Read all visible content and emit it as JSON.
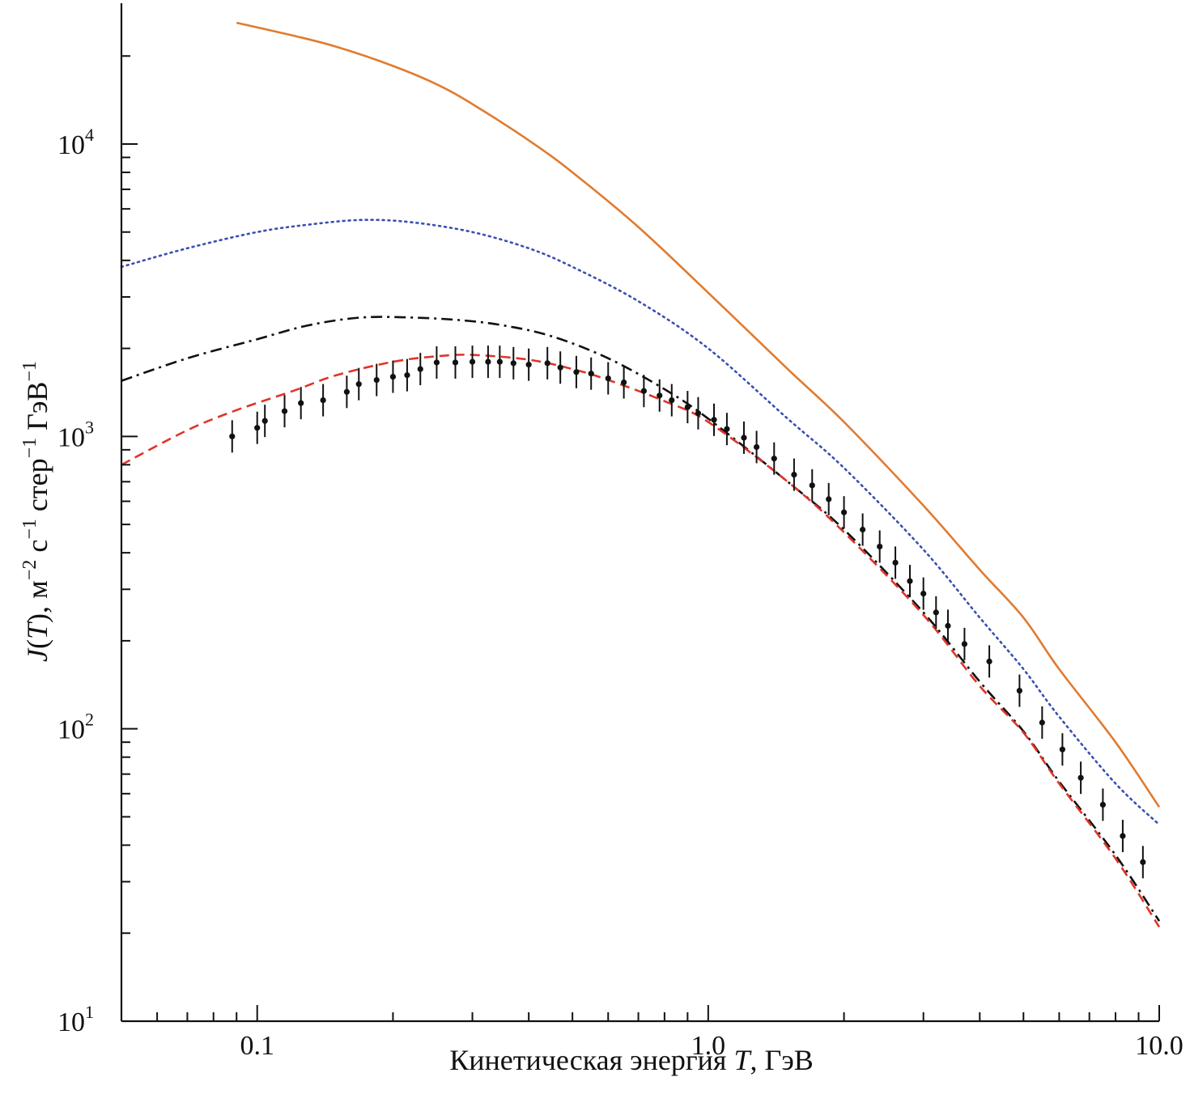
{
  "chart_data": {
    "type": "line",
    "xscale": "log",
    "yscale": "log",
    "xlim": [
      0.05,
      10.0
    ],
    "ylim": [
      10,
      30000
    ],
    "xlabel": {
      "prefix": "Кинетическая энергия ",
      "variable": "T",
      "suffix": ", ГэВ"
    },
    "ylabel": {
      "j": "J",
      "t": "T",
      "unit1": "), м",
      "exp1": "−2",
      "unit2": " с",
      "exp2": "−1",
      "unit3": " стер",
      "exp3": "−1",
      "unit4": " ГэВ",
      "exp4": "−1"
    },
    "x_ticks": [
      {
        "value": 0.1,
        "label": "0.1"
      },
      {
        "value": 1.0,
        "label": "1.0"
      },
      {
        "value": 10.0,
        "label": "10.0"
      }
    ],
    "y_ticks": [
      {
        "value": 10,
        "base": "10",
        "exp": "1"
      },
      {
        "value": 100,
        "base": "10",
        "exp": "2"
      },
      {
        "value": 1000,
        "base": "10",
        "exp": "3"
      },
      {
        "value": 10000,
        "base": "10",
        "exp": "4"
      }
    ],
    "series": [
      {
        "name": "orange-solid",
        "style": "solid",
        "color": "#e07b30",
        "x": [
          0.09,
          0.12,
          0.15,
          0.2,
          0.25,
          0.3,
          0.4,
          0.5,
          0.7,
          1.0,
          1.5,
          2.0,
          3.0,
          4.0,
          5.0,
          6.0,
          8.0,
          10.0
        ],
        "y": [
          26000,
          23500,
          21500,
          18500,
          16000,
          13700,
          10300,
          8000,
          5200,
          3100,
          1700,
          1120,
          580,
          350,
          240,
          160,
          90,
          54
        ]
      },
      {
        "name": "blue-dotted",
        "style": "dotted",
        "color": "#3a4fb0",
        "x": [
          0.05,
          0.07,
          0.1,
          0.13,
          0.17,
          0.22,
          0.3,
          0.4,
          0.5,
          0.7,
          1.0,
          1.5,
          2.0,
          3.0,
          4.0,
          5.0,
          6.0,
          8.0,
          10.0
        ],
        "y": [
          3800,
          4400,
          5000,
          5300,
          5500,
          5400,
          5000,
          4400,
          3800,
          2900,
          2000,
          1150,
          780,
          410,
          240,
          160,
          110,
          65,
          47
        ]
      },
      {
        "name": "black-dashdot",
        "style": "dashdot",
        "color": "#111111",
        "x": [
          0.05,
          0.07,
          0.1,
          0.13,
          0.17,
          0.22,
          0.28,
          0.35,
          0.45,
          0.6,
          0.8,
          1.0,
          1.5,
          2.0,
          3.0,
          4.0,
          5.0,
          6.0,
          8.0,
          10.0
        ],
        "y": [
          1550,
          1850,
          2150,
          2400,
          2550,
          2550,
          2500,
          2400,
          2200,
          1850,
          1450,
          1150,
          700,
          480,
          250,
          145,
          98,
          66,
          37,
          22
        ]
      },
      {
        "name": "red-dashed",
        "style": "dashed",
        "color": "#e0342a",
        "x": [
          0.05,
          0.07,
          0.09,
          0.12,
          0.15,
          0.2,
          0.25,
          0.3,
          0.4,
          0.5,
          0.6,
          0.8,
          1.0,
          1.5,
          2.0,
          3.0,
          4.0,
          5.0,
          6.0,
          8.0,
          10.0
        ],
        "y": [
          800,
          1050,
          1230,
          1430,
          1620,
          1800,
          1880,
          1900,
          1830,
          1700,
          1560,
          1320,
          1120,
          700,
          470,
          245,
          140,
          97,
          65,
          36,
          21
        ]
      }
    ],
    "points": {
      "name": "measurements",
      "color": "#111111",
      "x": [
        0.088,
        0.1,
        0.104,
        0.115,
        0.125,
        0.14,
        0.158,
        0.168,
        0.184,
        0.2,
        0.215,
        0.23,
        0.25,
        0.275,
        0.3,
        0.325,
        0.345,
        0.37,
        0.4,
        0.44,
        0.47,
        0.51,
        0.55,
        0.6,
        0.65,
        0.72,
        0.78,
        0.83,
        0.9,
        0.95,
        1.03,
        1.1,
        1.2,
        1.28,
        1.4,
        1.55,
        1.7,
        1.85,
        2.0,
        2.2,
        2.4,
        2.6,
        2.8,
        3.0,
        3.2,
        3.4,
        3.7,
        4.2,
        4.9,
        5.5,
        6.1,
        6.7,
        7.5,
        8.3,
        9.2
      ],
      "y": [
        1000,
        1070,
        1130,
        1220,
        1300,
        1330,
        1420,
        1510,
        1560,
        1600,
        1620,
        1700,
        1790,
        1790,
        1800,
        1800,
        1800,
        1780,
        1760,
        1780,
        1720,
        1660,
        1640,
        1580,
        1530,
        1430,
        1380,
        1330,
        1260,
        1200,
        1140,
        1060,
        990,
        920,
        840,
        740,
        680,
        610,
        550,
        480,
        420,
        370,
        320,
        290,
        250,
        225,
        195,
        170,
        135,
        105,
        85,
        68,
        55,
        43,
        35
      ]
    }
  }
}
